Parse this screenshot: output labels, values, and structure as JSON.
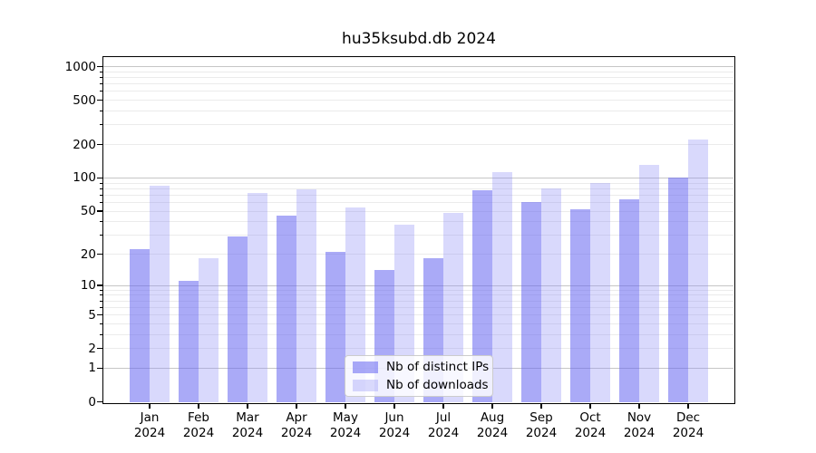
{
  "title": "hu35ksubd.db 2024",
  "legend": {
    "items": [
      {
        "label": "Nb of distinct IPs",
        "color": "rgba(100,100,240,0.55)"
      },
      {
        "label": "Nb of downloads",
        "color": "rgba(140,140,245,0.33)"
      }
    ]
  },
  "axes": {
    "yticks": [
      0,
      1,
      2,
      5,
      10,
      20,
      50,
      100,
      200,
      500,
      1000
    ],
    "ytick_labels": [
      "0",
      "1",
      "2",
      "5",
      "10",
      "20",
      "50",
      "100",
      "200",
      "500",
      "1000"
    ],
    "y_minor_grid_values": [
      2,
      3,
      4,
      5,
      6,
      7,
      8,
      9,
      20,
      30,
      40,
      50,
      60,
      70,
      80,
      90,
      200,
      300,
      400,
      500,
      600,
      700,
      800,
      900
    ],
    "y_major_grid_values": [
      1,
      10,
      100,
      1000
    ]
  },
  "colors": {
    "background": "#ffffff",
    "spine": "#000000",
    "major_grid": "#c6c6c6",
    "minor_grid": "#ebebeb",
    "series_ips": "rgba(100,100,240,0.55)",
    "series_downloads": "rgba(140,140,245,0.33)"
  },
  "chart_data": {
    "type": "bar",
    "title": "hu35ksubd.db 2024",
    "categories": [
      "Jan 2024",
      "Feb 2024",
      "Mar 2024",
      "Apr 2024",
      "May 2024",
      "Jun 2024",
      "Jul 2024",
      "Aug 2024",
      "Sep 2024",
      "Oct 2024",
      "Nov 2024",
      "Dec 2024"
    ],
    "series": [
      {
        "name": "Nb of distinct IPs",
        "color": "rgba(100,100,240,0.55)",
        "values": [
          22,
          11,
          29,
          45,
          21,
          14,
          18,
          77,
          60,
          51,
          63,
          100
        ]
      },
      {
        "name": "Nb of downloads",
        "color": "rgba(140,140,245,0.33)",
        "values": [
          85,
          18,
          72,
          78,
          53,
          37,
          48,
          111,
          80,
          89,
          131,
          220
        ]
      }
    ],
    "xlabel": "",
    "ylabel": "",
    "yscale": "log10(1+value)",
    "ylim": [
      0,
      1200
    ],
    "yticks": [
      0,
      1,
      2,
      5,
      10,
      20,
      50,
      100,
      200,
      500,
      1000
    ],
    "grid": "horizontal major decades + log minors",
    "legend_position": "lower center"
  }
}
